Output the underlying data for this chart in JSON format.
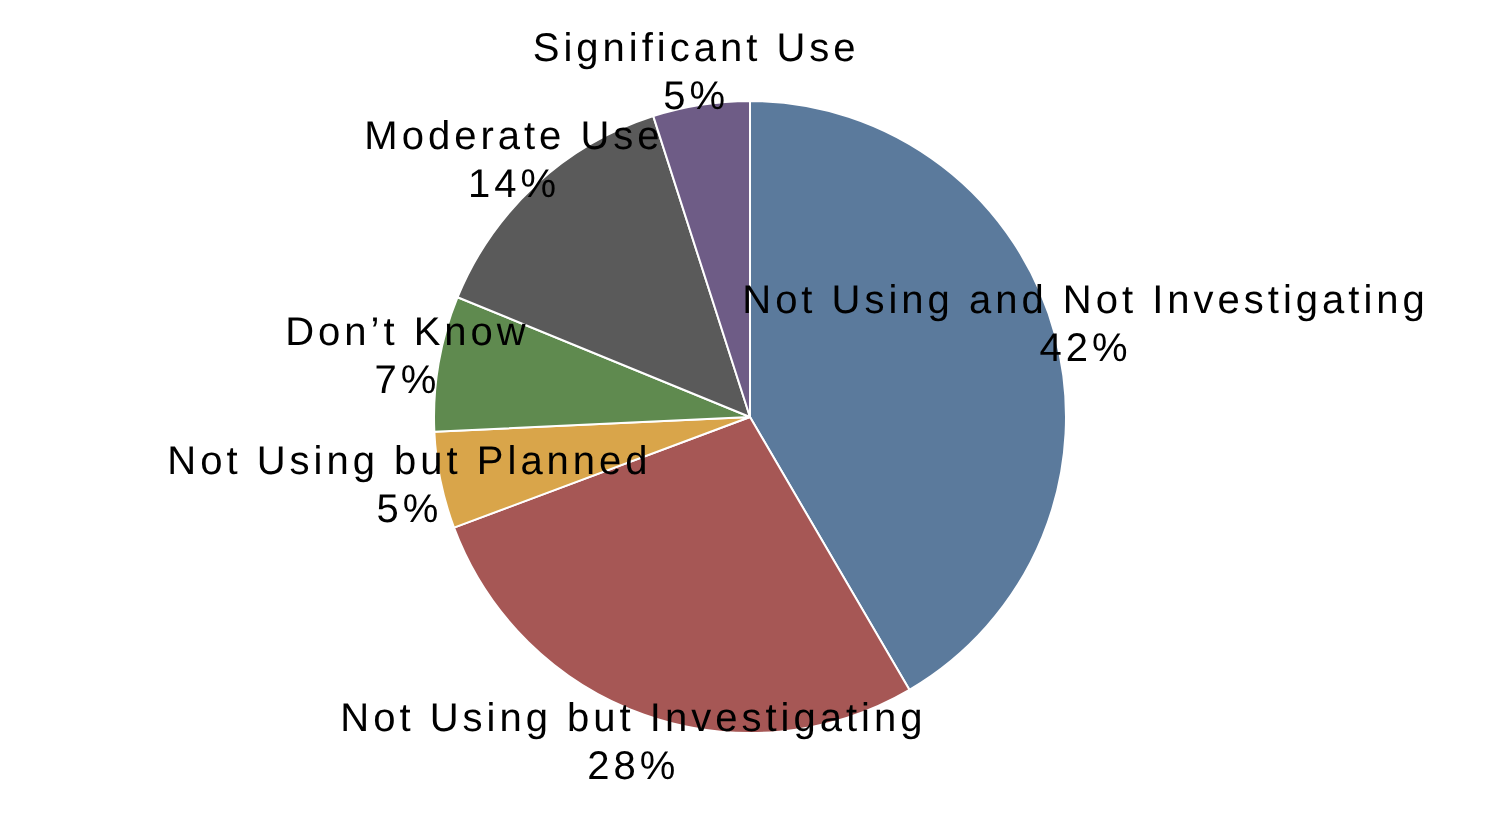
{
  "chart_data": {
    "type": "pie",
    "categories": [
      "Not Using and Not Investigating",
      "Not Using but Investigating",
      "Not Using but Planned",
      "Don’t Know",
      "Moderate Use",
      "Significant Use"
    ],
    "values": [
      42,
      28,
      5,
      7,
      14,
      5
    ],
    "value_labels": [
      "42%",
      "28%",
      "5%",
      "7%",
      "14%",
      "5%"
    ],
    "colors": [
      "#5b7a9c",
      "#a65755",
      "#d9a54a",
      "#5f8a4f",
      "#5a5a5a",
      "#6e5c86"
    ],
    "legend": false
  }
}
